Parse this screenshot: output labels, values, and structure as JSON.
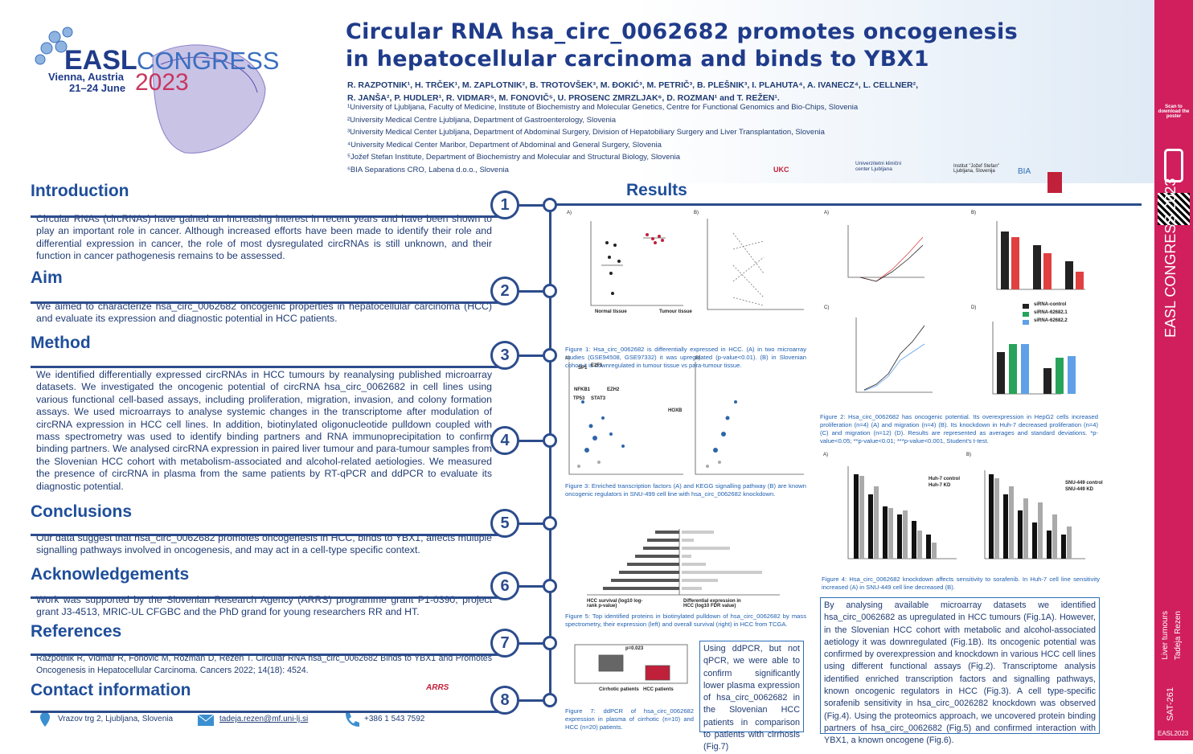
{
  "logo": {
    "brand": "EASL",
    "event": "CONGRESS",
    "place": "Vienna, Austria",
    "dates": "21–24 June",
    "year": "2023"
  },
  "header": {
    "title_lines": [
      "Circular RNA hsa_circ_0062682 promotes oncogenesis",
      "in hepatocellular carcinoma and binds to YBX1"
    ],
    "authors": [
      "R. RAZPOTNIK¹, H. TRČEK¹, M. ZAPLOTNIK², B. TROTOVŠEK³, M. ĐOKIĆ³, M. PETRIČ³, B. PLEŠNIK³, I. PLAHUTA⁴, A. IVANECZ⁴, L. CELLNER²,",
      "R. JANŠA², P. HUDLER¹, R. VIDMAR⁵, M. FONOVIČ⁵, U. PROSENC ZMRZLJAK⁶, D. ROZMAN¹ and T. REŽEN¹."
    ],
    "affiliations": [
      "¹University of Ljubljana, Faculty of Medicine, Institute of Biochemistry and Molecular Genetics, Centre for Functional Genomics and Bio-Chips, Slovenia",
      "²University Medical Centre Ljubljana, Department of Gastroenterology, Slovenia",
      "³University Medical Center Ljubljana, Department of Abdominal Surgery, Division of Hepatobiliary Surgery and Liver Transplantation, Slovenia",
      "⁴University Medical Center Maribor, Department of Abdominal and General Surgery, Slovenia",
      "⁵Jožef Stefan Institute, Department of Biochemistry and Molecular and Structural Biology, Slovenia",
      "⁶BIA Separations CRO, Labena d.o.o., Slovenia"
    ],
    "partners": [
      "UKC",
      "Univerzitetni klinični center Ljubljana",
      "Institut \"Jožef Stefan\" Ljubljana, Slovenija",
      "BIA"
    ]
  },
  "sections": [
    {
      "number": "1",
      "title": "Introduction",
      "text": "Circular RNAs (circRNAs) have gained an increasing interest in recent years and have been shown to play an important role in cancer. Although increased efforts have been made to identify their role and differential expression in cancer, the role of most dysregulated circRNAs is still unknown, and their function in cancer pathogenesis remains to be assessed."
    },
    {
      "number": "2",
      "title": "Aim",
      "text": "We aimed to characterize hsa_circ_0062682 oncogenic properties in hepatocellular carcinoma (HCC) and evaluate its expression and diagnostic potential in HCC patients."
    },
    {
      "number": "3",
      "title": "Method",
      "text": "We identified differentially expressed circRNAs in HCC tumours by reanalysing published microarray datasets. We investigated the oncogenic potential of circRNA hsa_circ_0062682 in cell lines using various functional cell-based assays, including proliferation, migration, invasion, and colony formation assays. We used microarrays to analyse systemic changes in the transcriptome after modulation of circRNA expression in HCC cell lines. In addition, biotinylated oligonucleotide pulldown coupled with mass spectrometry was used to identify binding partners and RNA immunoprecipitation to confirm binding partners. We analysed circRNA expression in paired liver tumour and para-tumour samples from the Slovenian HCC cohort with metabolism-associated and alcohol-related aetiologies. We measured the presence of circRNA in plasma from the same patients by RT-qPCR and ddPCR to evaluate its diagnostic potential."
    },
    {
      "number": "5",
      "title": "Conclusions",
      "text": "Our data suggest that hsa_circ_0062682 promotes oncogenesis in HCC, binds to YBX1, affects multiple signalling pathways involved in oncogenesis, and may act in a cell-type specific context."
    },
    {
      "number": "6",
      "title": "Acknowledgements",
      "text": "Work was supported by the Slovenian Research Agency (ARRS) programme grant P1-0390, project grant J3-4513, MRIC-UL CFGBC and the PhD grand for young researchers RR and HT."
    },
    {
      "number": "7",
      "title": "References",
      "text": "Razpotnik R, Vidmar R, Fonović M, Rozman D, Režen T. Circular RNA hsa_circ_0062682 Binds to YBX1 and Promotes Oncogenesis in Hepatocellular Carcinoma. Cancers 2022; 14(18): 4524."
    },
    {
      "number": "8",
      "title": "Contact information",
      "text": "ARRS"
    }
  ],
  "contact": {
    "address": "Vrazov trg 2, Ljubljana, Slovenia",
    "email": "tadeja.rezen@mf.uni-lj.si",
    "phone": "+386 1 543 7592"
  },
  "results": {
    "number": "4",
    "title": "Results",
    "figures": [
      {
        "panels": [
          "A)",
          "B)"
        ],
        "caption": "Figure 1: Hsa_circ_0062682 is differentially expressed in HCC. (A) in two microarray studies (GSE94508, GSE97332) it was upregulated (p-value<0.01). (B) in Slovenian cohort it is downregulated in tumour tissue vs para-tumour tissue.",
        "labels": [
          "Normal tissue",
          "Tumour tissue"
        ]
      },
      {
        "panels": [
          "A)",
          "B)"
        ],
        "caption": "Figure 3: Enriched transcription factors (A) and KEGG signalling pathway (B) are known oncogenic regulators in SNU-499 cell line with hsa_circ_0062682 knockdown.",
        "labels": [
          "SP1",
          "E2F1",
          "NFKB1",
          "TP53",
          "STAT3",
          "EZH2",
          "HOXB"
        ]
      },
      {
        "panels": [],
        "caption": "Figure 5: Top identified proteins in biotinylated pulldown of hsa_circ_0062682 by mass spectrometry, their expression (left) and overall survival (right) in HCC from TCGA.",
        "labels": [
          "HCC survival (log10 log-rank p-value)",
          "Differential expression in HCC (log10 FDR value)"
        ]
      },
      {
        "panels": [],
        "caption": "Figure 7: ddPCR of hsa_circ_0062682 expression in plasma of cirrhotic (n=10) and HCC (n=20) patients.",
        "labels": [
          "p=0.023",
          "Cirrhotic patients",
          "HCC patients"
        ]
      },
      {
        "panels": [
          "A)",
          "B)",
          "C)",
          "D)"
        ],
        "caption": "Figure 2: Hsa_circ_0062682 has oncogenic potential. Its overexpression in HepG2 cells increased proliferation (n=4) (A) and migration (n=4) (B). Its knockdown in Huh-7 decreased proliferation (n=4) (C) and migration (n=12) (D). Results are represented as averages and standard deviations. *p-value<0.05; **p-value<0.01; ***p-value<0.001, Student's t-test.",
        "labels": [
          "siRNA-control",
          "siRNA-62682.1",
          "siRNA-62682.2"
        ]
      },
      {
        "panels": [
          "A)",
          "B)"
        ],
        "caption": "Figure 4: Hsa_circ_0062682 knockdown affects sensitivity to sorafenib. In Huh-7 cell line sensitivity increased (A) in SNU-449 cell line decreased (B).",
        "labels": [
          "Huh-7 control",
          "Huh-7 KD",
          "SNU-449 control",
          "SNU-449 KD"
        ]
      }
    ],
    "ddpcr_text": "Using ddPCR, but not qPCR, we were able to confirm significantly lower plasma expression of hsa_circ_0062682 in the Slovenian HCC patients in comparison to patients with cirrhosis (Fig.7)",
    "summary": "By analysing available microarray datasets we identified hsa_circ_0062682 as upregulated in HCC tumours (Fig.1A). However, in the Slovenian HCC cohort with metabolic and alcohol-associated aetiology it was downregulated (Fig.1B). Its oncogenic potential was confirmed by overexpression and knockdown in various HCC cell lines using different functional assays (Fig.2). Transcriptome analysis identified enriched transcription factors and signalling pathways, known oncogenic regulators in HCC (Fig.3). A cell type-specific sorafenib sensitivity in hsa_circ_0026282 knockdown was observed (Fig.4). Using the proteomics approach, we uncovered protein binding partners of hsa_circ_0062682 (Fig.5) and confirmed interaction with YBX1, a known oncogene (Fig.6)."
  },
  "sidebar": {
    "scan": "Scan to download the poster",
    "event": "EASL CONGRESS 2023",
    "topic": "Liver tumours",
    "author": "Tadeja Rezen",
    "code": "SAT-261",
    "tag": "EASL2023"
  }
}
